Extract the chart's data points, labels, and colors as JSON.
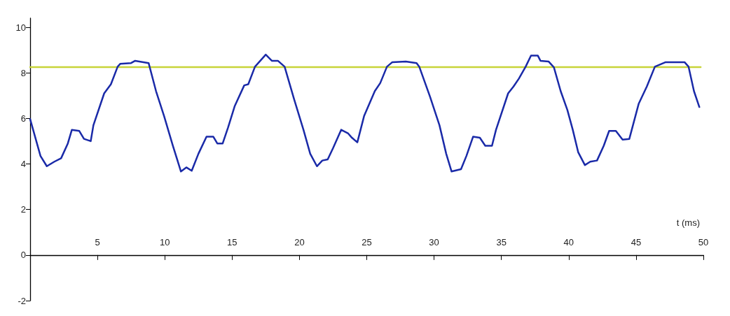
{
  "chart_data": {
    "type": "line",
    "xlabel": "t (ms)",
    "xlim": [
      0,
      50
    ],
    "xticks": [
      5,
      10,
      15,
      20,
      25,
      30,
      35,
      40,
      45,
      50
    ],
    "ylim": [
      -2,
      10.4
    ],
    "yticks": [
      -2,
      0,
      2,
      4,
      6,
      8,
      10
    ],
    "grid": false,
    "marker": "none",
    "line_style": "solid",
    "series": [
      {
        "color": "#c8d43a",
        "x": [
          0,
          5,
          10,
          15,
          20,
          25,
          30,
          35,
          40,
          45,
          49.8
        ],
        "values": [
          8.25,
          8.25,
          8.25,
          8.25,
          8.25,
          8.25,
          8.25,
          8.25,
          8.25,
          8.25,
          8.25
        ]
      },
      {
        "color": "#1a2aa8",
        "x": [
          0,
          0.77,
          1.24,
          1.8,
          2.3,
          2.8,
          3.1,
          3.65,
          4.0,
          4.5,
          4.7,
          5.5,
          6.0,
          6.5,
          6.7,
          7.5,
          7.8,
          8.8,
          9.35,
          9.95,
          10.6,
          11.2,
          11.6,
          12.0,
          12.5,
          13.1,
          13.6,
          13.9,
          14.3,
          14.7,
          15.2,
          15.9,
          16.2,
          16.7,
          17.5,
          17.95,
          18.4,
          18.9,
          19.6,
          20.3,
          20.8,
          21.3,
          21.7,
          22.1,
          22.5,
          23.1,
          23.6,
          23.9,
          24.3,
          24.8,
          25.6,
          26.0,
          26.5,
          26.9,
          27.9,
          28.7,
          28.9,
          29.7,
          30.4,
          30.9,
          31.3,
          32.0,
          32.4,
          32.9,
          33.4,
          33.8,
          34.3,
          34.6,
          35.5,
          35.9,
          36.3,
          36.8,
          37.2,
          37.7,
          37.9,
          38.5,
          38.9,
          39.4,
          39.9,
          40.3,
          40.7,
          41.2,
          41.6,
          42.1,
          42.6,
          43.0,
          43.5,
          44.0,
          44.5,
          45.2,
          45.8,
          46.4,
          47.2,
          48.6,
          48.9,
          49.3,
          49.7
        ],
        "values": [
          5.97,
          4.35,
          3.9,
          4.1,
          4.25,
          4.9,
          5.5,
          5.45,
          5.1,
          5.0,
          5.7,
          7.1,
          7.5,
          8.27,
          8.4,
          8.43,
          8.53,
          8.43,
          7.2,
          6.1,
          4.8,
          3.67,
          3.85,
          3.7,
          4.45,
          5.2,
          5.2,
          4.9,
          4.9,
          5.6,
          6.55,
          7.45,
          7.5,
          8.27,
          8.8,
          8.53,
          8.53,
          8.27,
          6.85,
          5.5,
          4.45,
          3.9,
          4.15,
          4.2,
          4.7,
          5.5,
          5.35,
          5.15,
          4.95,
          6.1,
          7.2,
          7.55,
          8.27,
          8.47,
          8.5,
          8.43,
          8.27,
          6.95,
          5.7,
          4.45,
          3.67,
          3.77,
          4.35,
          5.2,
          5.15,
          4.8,
          4.8,
          5.5,
          7.1,
          7.4,
          7.75,
          8.27,
          8.76,
          8.76,
          8.53,
          8.5,
          8.24,
          7.2,
          6.37,
          5.5,
          4.52,
          3.95,
          4.1,
          4.15,
          4.8,
          5.45,
          5.45,
          5.07,
          5.1,
          6.65,
          7.4,
          8.27,
          8.47,
          8.47,
          8.27,
          7.2,
          6.5
        ]
      }
    ]
  }
}
